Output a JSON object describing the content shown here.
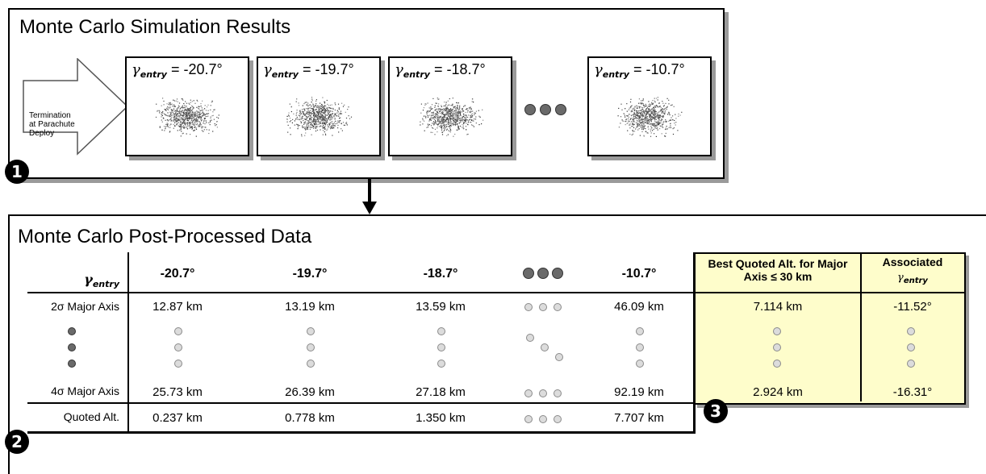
{
  "panel1": {
    "title": "Monte Carlo Simulation Results",
    "arrow_label": [
      "Termination",
      "at Parachute",
      "Deploy"
    ],
    "badge": "1",
    "symbol": "γ",
    "subscript": "entry",
    "sims": [
      {
        "angle": "= -20.7°"
      },
      {
        "angle": "= -19.7°"
      },
      {
        "angle": "= -18.7°"
      },
      {
        "angle": "= -10.7°"
      }
    ]
  },
  "panel2": {
    "title": "Monte Carlo Post-Processed Data",
    "badge": "2",
    "header_symbol": "γ",
    "header_subscript": "entry",
    "columns": [
      "-20.7°",
      "-19.7°",
      "-18.7°",
      "-10.7°"
    ],
    "rows": [
      {
        "label": "2σ Major Axis",
        "values": [
          "12.87 km",
          "13.19 km",
          "13.59 km",
          "46.09 km"
        ]
      },
      {
        "label": "4σ Major Axis",
        "values": [
          "25.73 km",
          "26.39 km",
          "27.18 km",
          "92.19 km"
        ]
      },
      {
        "label": "Quoted Alt.",
        "values": [
          "0.237 km",
          "0.778 km",
          "1.350 km",
          "7.707 km"
        ]
      }
    ]
  },
  "panel3": {
    "badge": "3",
    "header_best": "Best Quoted Alt. for Major Axis ≤ 30 km",
    "header_assoc": "Associated",
    "header_assoc_symbol": "γ",
    "header_assoc_subscript": "entry",
    "best_2sigma": "7.114 km",
    "assoc_2sigma": "-11.52°",
    "best_4sigma": "2.924 km",
    "assoc_4sigma": "-16.31°"
  },
  "colors": {
    "highlight": "#fefdcb",
    "shadow": "#9a9a9a"
  }
}
